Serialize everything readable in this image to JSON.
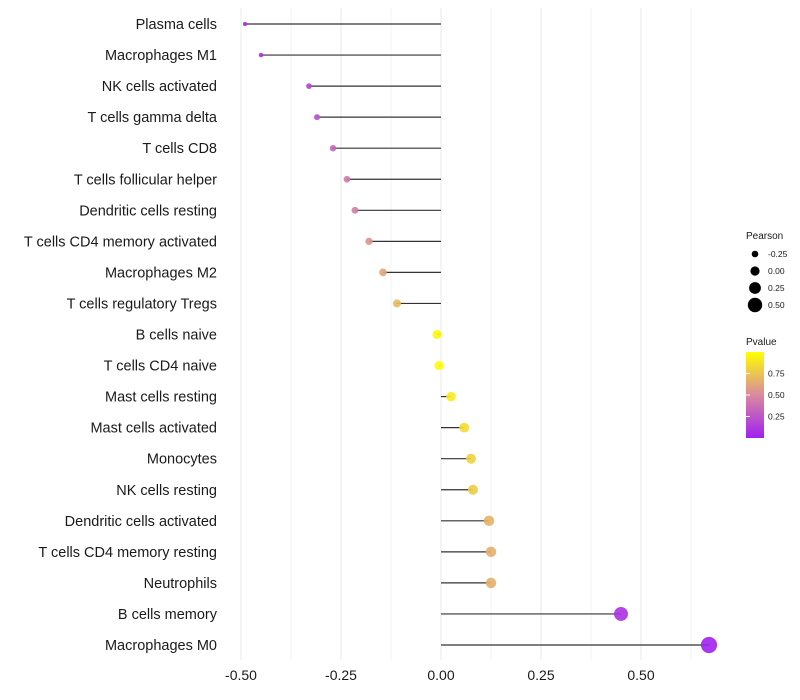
{
  "chart_data": {
    "type": "lollipop",
    "categories": [
      "Plasma cells",
      "Macrophages M1",
      "NK cells activated",
      "T cells gamma delta",
      "T cells CD8",
      "T cells follicular helper",
      "Dendritic cells resting",
      "T cells CD4 memory activated",
      "Macrophages M2",
      "T cells regulatory  Tregs",
      "B cells naive",
      "T cells CD4 naive",
      "Mast cells resting",
      "Mast cells activated",
      "Monocytes",
      "NK cells resting",
      "Dendritic cells activated",
      "T cells CD4 memory resting",
      "Neutrophils",
      "B cells memory",
      "Macrophages M0"
    ],
    "pearson": [
      -0.49,
      -0.45,
      -0.33,
      -0.31,
      -0.27,
      -0.235,
      -0.215,
      -0.18,
      -0.145,
      -0.11,
      -0.01,
      -0.005,
      0.025,
      0.058,
      0.075,
      0.08,
      0.12,
      0.125,
      0.125,
      0.45,
      0.67
    ],
    "pvalue": [
      0.03,
      0.06,
      0.18,
      0.22,
      0.32,
      0.42,
      0.45,
      0.55,
      0.62,
      0.7,
      0.98,
      0.99,
      0.92,
      0.85,
      0.8,
      0.78,
      0.68,
      0.66,
      0.66,
      0.08,
      0.01
    ],
    "xticks": [
      -0.5,
      -0.25,
      0.0,
      0.25,
      0.5
    ],
    "xtick_labels": [
      "-0.50",
      "-0.25",
      "0.00",
      "0.25",
      "0.50"
    ],
    "xlim": [
      -0.5,
      0.67
    ],
    "legend_size": {
      "title": "Pearson",
      "values": [
        -0.25,
        0.0,
        0.25,
        0.5
      ],
      "labels": [
        "-0.25",
        "0.00",
        "0.25",
        "0.50"
      ]
    },
    "legend_color": {
      "title": "Pvalue",
      "values": [
        0.75,
        0.5,
        0.25
      ],
      "labels": [
        "0.75",
        "0.50",
        "0.25"
      ],
      "range": [
        0.0,
        1.0
      ]
    },
    "colors": {
      "low": "#a020f0",
      "mid": "#d88aa0",
      "high": "#ffff00",
      "stem": "#333333",
      "grid": "#ebebeb"
    }
  }
}
